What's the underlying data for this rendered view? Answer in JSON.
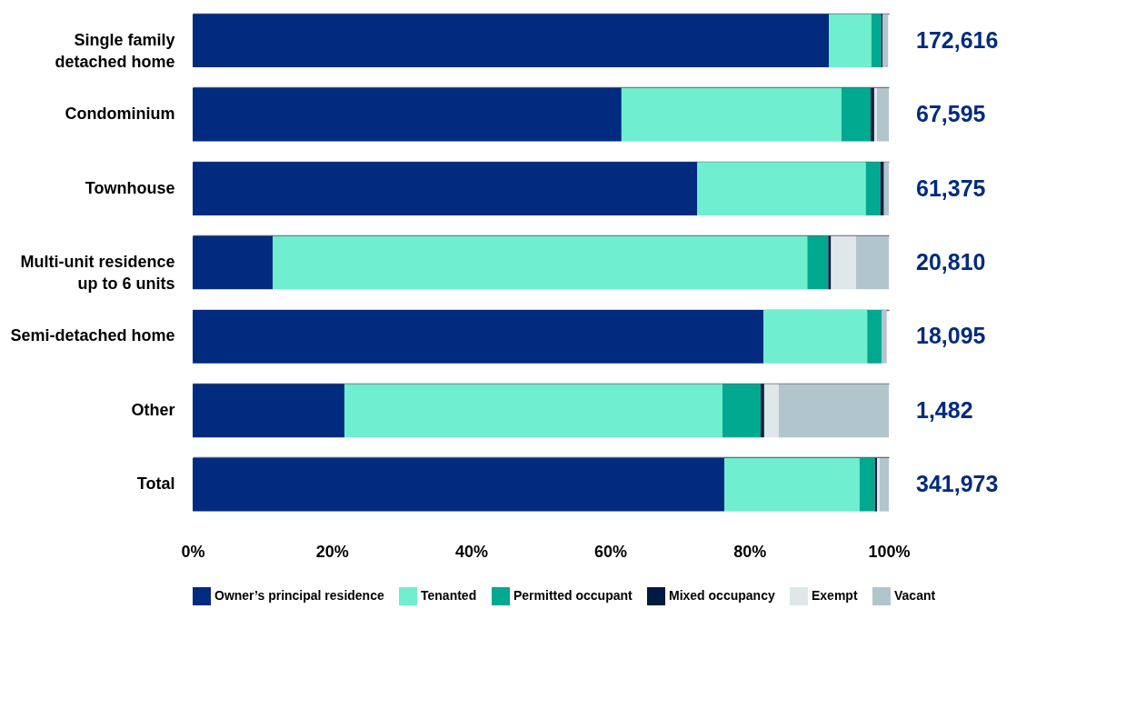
{
  "chart_data": {
    "type": "bar",
    "orientation": "horizontal",
    "stacked": true,
    "categories": [
      "Single family detached home",
      "Condominium",
      "Townhouse",
      "Multi-unit residence up to 6 units",
      "Semi-detached home",
      "Other",
      "Total"
    ],
    "series": [
      {
        "name": "Owner’s principal residence",
        "color": "#002b7f",
        "values": [
          91.4,
          61.6,
          72.5,
          11.5,
          82.0,
          21.8,
          76.4
        ]
      },
      {
        "name": "Tenanted",
        "color": "#6feed0",
        "values": [
          6.1,
          31.6,
          24.2,
          76.8,
          14.9,
          54.3,
          19.4
        ]
      },
      {
        "name": "Permitted occupant",
        "color": "#00a98f",
        "values": [
          1.4,
          4.2,
          2.1,
          3.0,
          2.1,
          5.5,
          2.2
        ]
      },
      {
        "name": "Mixed occupancy",
        "color": "#001a40",
        "values": [
          0.2,
          0.5,
          0.5,
          0.4,
          null,
          0.5,
          0.3
        ]
      },
      {
        "name": "Exempt",
        "color": "#dfe7ea",
        "values": [
          null,
          0.4,
          null,
          3.6,
          null,
          2.1,
          0.4
        ]
      },
      {
        "name": "Vacant",
        "color": "#b1c5cc",
        "values": [
          0.8,
          1.7,
          0.7,
          4.7,
          0.7,
          15.8,
          1.3
        ]
      }
    ],
    "annotations": [
      "172,616",
      "67,595",
      "61,375",
      "20,810",
      "18,095",
      "1,482",
      "341,973"
    ],
    "xlim": [
      0,
      100
    ],
    "xticks": [
      {
        "value": 0,
        "label": "0%"
      },
      {
        "value": 20,
        "label": "20%"
      },
      {
        "value": 40,
        "label": "40%"
      },
      {
        "value": 60,
        "label": "60%"
      },
      {
        "value": 80,
        "label": "80%"
      },
      {
        "value": 100,
        "label": "100%"
      }
    ],
    "grid": "y",
    "legend": "bottom"
  }
}
